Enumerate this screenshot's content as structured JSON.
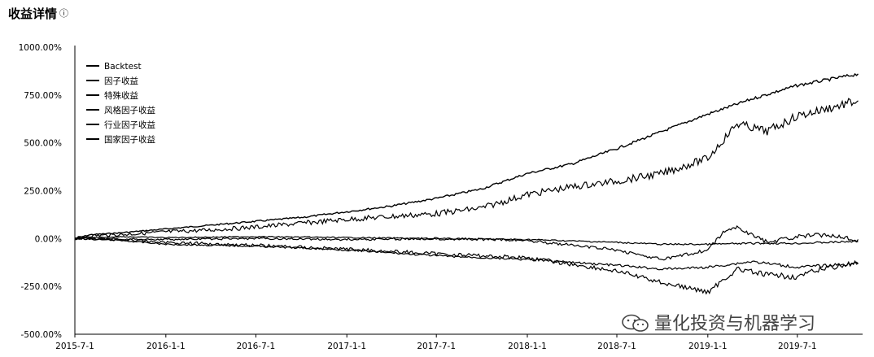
{
  "chart_data": {
    "type": "line",
    "title": "收益详情",
    "xlabel": "",
    "ylabel": "",
    "x_start": "2015-07-01",
    "x_end": "2019-11-10",
    "xticks": [
      "2015-7-1",
      "2016-1-1",
      "2016-7-1",
      "2017-1-1",
      "2017-7-1",
      "2018-1-1",
      "2018-7-1",
      "2019-1-1",
      "2019-7-1"
    ],
    "yticks": [
      "1000.00%",
      "750.00%",
      "500.00%",
      "250.00%",
      "0.00%",
      "-250.00%",
      "-500.00%"
    ],
    "ylim": [
      -500,
      1000
    ],
    "y_unit": "%",
    "grid": false,
    "legend_position": "top-left",
    "series": [
      {
        "name": "Backtest",
        "color": "#000000",
        "points": [
          [
            "2015-07-01",
            0
          ],
          [
            "2015-08-01",
            20
          ],
          [
            "2015-10-01",
            30
          ],
          [
            "2016-01-01",
            50
          ],
          [
            "2016-04-01",
            70
          ],
          [
            "2016-07-01",
            90
          ],
          [
            "2016-10-01",
            110
          ],
          [
            "2017-01-01",
            140
          ],
          [
            "2017-04-01",
            170
          ],
          [
            "2017-07-01",
            210
          ],
          [
            "2017-10-01",
            260
          ],
          [
            "2018-01-01",
            340
          ],
          [
            "2018-04-01",
            390
          ],
          [
            "2018-07-01",
            470
          ],
          [
            "2018-10-01",
            560
          ],
          [
            "2019-01-01",
            650
          ],
          [
            "2019-04-01",
            730
          ],
          [
            "2019-07-01",
            800
          ],
          [
            "2019-09-01",
            830
          ],
          [
            "2019-11-01",
            860
          ]
        ]
      },
      {
        "name": "因子收益",
        "color": "#000000",
        "points": [
          [
            "2015-07-01",
            0
          ],
          [
            "2015-08-01",
            15
          ],
          [
            "2015-10-01",
            20
          ],
          [
            "2016-01-01",
            35
          ],
          [
            "2016-04-01",
            45
          ],
          [
            "2016-07-01",
            60
          ],
          [
            "2016-10-01",
            80
          ],
          [
            "2017-01-01",
            100
          ],
          [
            "2017-04-01",
            115
          ],
          [
            "2017-07-01",
            130
          ],
          [
            "2017-10-01",
            160
          ],
          [
            "2018-01-01",
            230
          ],
          [
            "2018-04-01",
            270
          ],
          [
            "2018-07-01",
            300
          ],
          [
            "2018-10-01",
            340
          ],
          [
            "2019-01-01",
            420
          ],
          [
            "2019-03-01",
            600
          ],
          [
            "2019-05-01",
            560
          ],
          [
            "2019-07-01",
            640
          ],
          [
            "2019-09-01",
            680
          ],
          [
            "2019-11-01",
            720
          ]
        ]
      },
      {
        "name": "特殊收益",
        "color": "#000000",
        "points": [
          [
            "2015-07-01",
            0
          ],
          [
            "2015-10-01",
            10
          ],
          [
            "2016-01-01",
            5
          ],
          [
            "2016-07-01",
            10
          ],
          [
            "2017-01-01",
            5
          ],
          [
            "2017-07-01",
            0
          ],
          [
            "2018-01-01",
            -5
          ],
          [
            "2018-07-01",
            -20
          ],
          [
            "2018-10-01",
            -30
          ],
          [
            "2019-01-01",
            -30
          ],
          [
            "2019-04-01",
            -25
          ],
          [
            "2019-07-01",
            -25
          ],
          [
            "2019-11-01",
            -15
          ]
        ]
      },
      {
        "name": "风格因子收益",
        "color": "#000000",
        "points": [
          [
            "2015-07-01",
            0
          ],
          [
            "2015-10-01",
            -10
          ],
          [
            "2016-01-01",
            -30
          ],
          [
            "2016-07-01",
            -40
          ],
          [
            "2017-01-01",
            -60
          ],
          [
            "2017-07-01",
            -90
          ],
          [
            "2018-01-01",
            -110
          ],
          [
            "2018-07-01",
            -140
          ],
          [
            "2018-10-01",
            -160
          ],
          [
            "2019-01-01",
            -150
          ],
          [
            "2019-04-01",
            -120
          ],
          [
            "2019-07-01",
            -150
          ],
          [
            "2019-11-01",
            -130
          ]
        ]
      },
      {
        "name": "行业因子收益",
        "color": "#000000",
        "points": [
          [
            "2015-07-01",
            0
          ],
          [
            "2015-10-01",
            -5
          ],
          [
            "2016-01-01",
            -20
          ],
          [
            "2016-07-01",
            -35
          ],
          [
            "2017-01-01",
            -55
          ],
          [
            "2017-07-01",
            -80
          ],
          [
            "2018-01-01",
            -100
          ],
          [
            "2018-07-01",
            -170
          ],
          [
            "2018-10-01",
            -230
          ],
          [
            "2019-01-01",
            -280
          ],
          [
            "2019-03-01",
            -160
          ],
          [
            "2019-05-01",
            -190
          ],
          [
            "2019-07-01",
            -200
          ],
          [
            "2019-09-01",
            -150
          ],
          [
            "2019-11-01",
            -130
          ]
        ]
      },
      {
        "name": "国家因子收益",
        "color": "#000000",
        "points": [
          [
            "2015-07-01",
            0
          ],
          [
            "2016-01-01",
            -5
          ],
          [
            "2016-07-01",
            0
          ],
          [
            "2017-01-01",
            -5
          ],
          [
            "2017-07-01",
            0
          ],
          [
            "2018-01-01",
            -10
          ],
          [
            "2018-07-01",
            -60
          ],
          [
            "2018-10-01",
            -110
          ],
          [
            "2019-01-01",
            -60
          ],
          [
            "2019-02-01",
            30
          ],
          [
            "2019-03-01",
            60
          ],
          [
            "2019-05-01",
            -20
          ],
          [
            "2019-07-01",
            10
          ],
          [
            "2019-09-01",
            20
          ],
          [
            "2019-11-01",
            -5
          ]
        ]
      }
    ]
  },
  "watermark": {
    "text": "量化投资与机器学习",
    "icon": "wechat-icon"
  },
  "title_icon": "info-icon"
}
